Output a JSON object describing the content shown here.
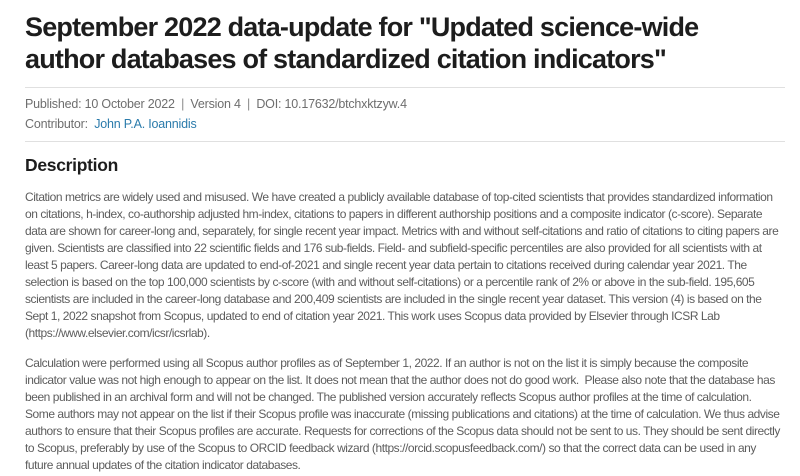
{
  "page": {
    "title": "September 2022 data-update for \"Updated science-wide author databases of standardized citation indicators\"",
    "meta": {
      "published_label": "Published:",
      "published_date": "10 October 2022",
      "separator": "|",
      "version": "Version 4",
      "doi_label": "DOI:",
      "doi": "10.17632/btchxktzyw.4",
      "contributor_label": "Contributor:",
      "contributor_name": "John P.A. Ioannidis"
    },
    "description": {
      "heading": "Description",
      "paragraphs": [
        "Citation metrics are widely used and misused. We have created a publicly available database of top-cited scientists that provides standardized information on citations, h-index, co-authorship adjusted hm-index, citations to papers in different authorship positions and a composite indicator (c-score). Separate data are shown for career-long and, separately, for single recent year impact. Metrics with and without self-citations and ratio of citations to citing papers are given. Scientists are classified into 22 scientific fields and 176 sub-fields. Field- and subfield-specific percentiles are also provided for all scientists with at least 5 papers. Career-long data are updated to end-of-2021 and single recent year data pertain to citations received during calendar year 2021. The selection is based on the top 100,000 scientists by c-score (with and without self-citations) or a percentile rank of 2% or above in the sub-field. 195,605 scientists are included in the career-long database and 200,409 scientists are included in the single recent year dataset. This version (4) is based on the Sept 1, 2022 snapshot from Scopus, updated to end of citation year 2021. This work uses Scopus data provided by Elsevier through ICSR Lab (https://www.elsevier.com/icsr/icsrlab).",
        "Calculation were performed using all Scopus author profiles as of September 1, 2022. If an author is not on the list it is simply because the composite indicator value was not high enough to appear on the list. It does not mean that the author does not do good work.  Please also note that the database has been published in an archival form and will not be changed. The published version accurately reflects Scopus author profiles at the time of calculation.  Some authors may not appear on the list if their Scopus profile was inaccurate (missing publications and citations) at the time of calculation. We thus advise authors to ensure that their Scopus profiles are accurate. Requests for corrections of the Scopus data should not be sent to us. They should be sent directly to Scopus, preferably by use of the Scopus to ORCID feedback wizard (https://orcid.scopusfeedback.com/) so that the correct data can be used in any future annual updates of the citation indicator databases."
      ]
    }
  },
  "colors": {
    "title_text": "#1d1d1d",
    "meta_text": "#6e6e6e",
    "body_text": "#5d5d5d",
    "link": "#2b7bab",
    "divider": "#e0e0e0",
    "background": "#ffffff"
  }
}
